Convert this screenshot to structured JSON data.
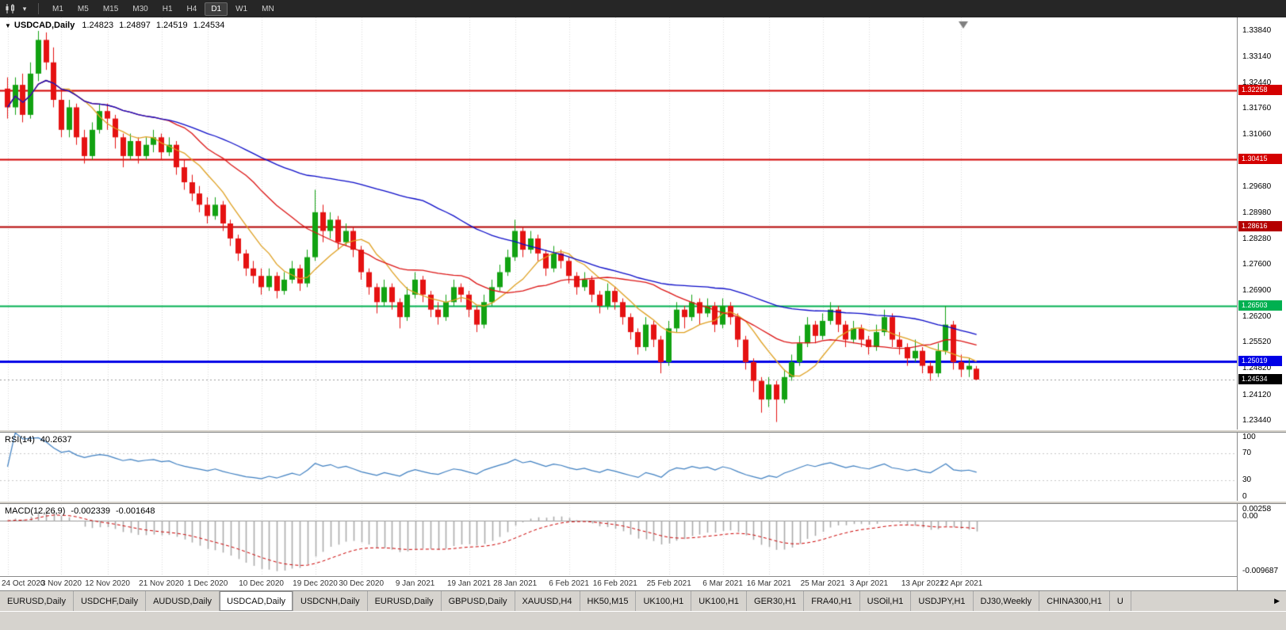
{
  "toolbar": {
    "timeframes": [
      "M1",
      "M5",
      "M15",
      "M30",
      "H1",
      "H4",
      "D1",
      "W1",
      "MN"
    ],
    "active_timeframe": "D1",
    "chart_type_icon": "candlestick-chart-icon",
    "caret_icon": "▾"
  },
  "chart": {
    "title": "USDCAD,Daily",
    "collapse_icon": "▼",
    "ohlc": {
      "open": "1.24823",
      "high": "1.24897",
      "low": "1.24519",
      "close": "1.24534"
    }
  },
  "price_scale": {
    "labels": [
      "1.33840",
      "1.33140",
      "1.32440",
      "1.31760",
      "1.31060",
      "1.30360",
      "1.29680",
      "1.28980",
      "1.28280",
      "1.27600",
      "1.26900",
      "1.26200",
      "1.25520",
      "1.24820",
      "1.24120",
      "1.23440"
    ]
  },
  "hlines": [
    {
      "price": 1.32258,
      "label": "1.32258",
      "color": "#D40000",
      "width": 2
    },
    {
      "price": 1.30415,
      "label": "1.30415",
      "color": "#D40000",
      "width": 2
    },
    {
      "price": 1.28616,
      "label": "1.28616",
      "color": "#B40000",
      "width": 2
    },
    {
      "price": 1.26503,
      "label": "1.26503",
      "color": "#00B050",
      "width": 2
    },
    {
      "price": 1.25019,
      "label": "1.25019",
      "color": "#0000E6",
      "width": 3
    }
  ],
  "current_price": {
    "price": 1.24534,
    "label": "1.24534",
    "color": "#000000"
  },
  "indicators": {
    "rsi": {
      "name": "RSI(14)",
      "value": "40.2637",
      "period": 14,
      "levels": [
        "100",
        "70",
        "30",
        "0"
      ]
    },
    "macd": {
      "name": "MACD(12,26,9)",
      "values": [
        "-0.002339",
        "-0.001648"
      ],
      "fast": 12,
      "slow": 26,
      "signal": 9,
      "scale_top": "0.00258",
      "scale_zero": "0.00",
      "scale_bottom": "-0.009687"
    }
  },
  "time_axis": {
    "labels": [
      {
        "text": "24 Oct 2020",
        "index": 0
      },
      {
        "text": "3 Nov 2020",
        "index": 7
      },
      {
        "text": "12 Nov 2020",
        "index": 13
      },
      {
        "text": "21 Nov 2020",
        "index": 20
      },
      {
        "text": "1 Dec 2020",
        "index": 26
      },
      {
        "text": "10 Dec 2020",
        "index": 33
      },
      {
        "text": "19 Dec 2020",
        "index": 40
      },
      {
        "text": "30 Dec 2020",
        "index": 46
      },
      {
        "text": "9 Jan 2021",
        "index": 53
      },
      {
        "text": "19 Jan 2021",
        "index": 60
      },
      {
        "text": "28 Jan 2021",
        "index": 66
      },
      {
        "text": "6 Feb 2021",
        "index": 73
      },
      {
        "text": "16 Feb 2021",
        "index": 79
      },
      {
        "text": "25 Feb 2021",
        "index": 86
      },
      {
        "text": "6 Mar 2021",
        "index": 93
      },
      {
        "text": "16 Mar 2021",
        "index": 99
      },
      {
        "text": "25 Mar 2021",
        "index": 106
      },
      {
        "text": "3 Apr 2021",
        "index": 112
      },
      {
        "text": "13 Apr 2021",
        "index": 119
      },
      {
        "text": "22 Apr 2021",
        "index": 124
      }
    ]
  },
  "tabs": {
    "items": [
      "EURUSD,Daily",
      "USDCHF,Daily",
      "AUDUSD,Daily",
      "USDCAD,Daily",
      "USDCNH,Daily",
      "EURUSD,Daily",
      "GBPUSD,Daily",
      "XAUUSD,H4",
      "HK50,M15",
      "UK100,H1",
      "UK100,H1",
      "GER30,H1",
      "FRA40,H1",
      "USOil,H1",
      "USDJPY,H1",
      "DJ30,Weekly",
      "CHINA300,H1",
      "U"
    ],
    "active_index": 3,
    "scroll_right_icon": "▶"
  },
  "colors": {
    "bull": "#12A212",
    "bear": "#E51212",
    "grid": "#DADADA",
    "rsi_line": "#3E7FC1",
    "macd_hist": "#ABABAB",
    "macd_signal": "#CC0000"
  },
  "chart_data": {
    "type": "candlestick",
    "symbol": "USDCAD",
    "timeframe": "Daily",
    "title": "USDCAD,Daily",
    "ylim": [
      1.232,
      1.342
    ],
    "moving_averages": [
      {
        "name": "ma-fast",
        "period": 8,
        "color": "#DFA020"
      },
      {
        "name": "ma-mid",
        "period": 21,
        "color": "#DC1414"
      },
      {
        "name": "ma-slow",
        "period": 55,
        "color": "#0A0AC8"
      }
    ],
    "candles": [
      [
        1.323,
        1.326,
        1.315,
        1.318
      ],
      [
        1.318,
        1.326,
        1.316,
        1.324
      ],
      [
        1.324,
        1.327,
        1.314,
        1.316
      ],
      [
        1.316,
        1.33,
        1.315,
        1.327
      ],
      [
        1.327,
        1.3384,
        1.325,
        1.336
      ],
      [
        1.336,
        1.338,
        1.328,
        1.33
      ],
      [
        1.33,
        1.334,
        1.318,
        1.32
      ],
      [
        1.32,
        1.323,
        1.31,
        1.312
      ],
      [
        1.312,
        1.32,
        1.31,
        1.318
      ],
      [
        1.318,
        1.319,
        1.308,
        1.31
      ],
      [
        1.31,
        1.312,
        1.303,
        1.305
      ],
      [
        1.305,
        1.314,
        1.304,
        1.312
      ],
      [
        1.312,
        1.319,
        1.311,
        1.317
      ],
      [
        1.317,
        1.319,
        1.312,
        1.315
      ],
      [
        1.315,
        1.316,
        1.307,
        1.31
      ],
      [
        1.31,
        1.311,
        1.302,
        1.305
      ],
      [
        1.305,
        1.311,
        1.304,
        1.309
      ],
      [
        1.309,
        1.31,
        1.303,
        1.305
      ],
      [
        1.305,
        1.31,
        1.304,
        1.308
      ],
      [
        1.308,
        1.312,
        1.306,
        1.31
      ],
      [
        1.31,
        1.311,
        1.304,
        1.306
      ],
      [
        1.306,
        1.31,
        1.305,
        1.308
      ],
      [
        1.308,
        1.309,
        1.3,
        1.302
      ],
      [
        1.302,
        1.304,
        1.296,
        1.298
      ],
      [
        1.298,
        1.3,
        1.293,
        1.295
      ],
      [
        1.295,
        1.297,
        1.29,
        1.292
      ],
      [
        1.292,
        1.294,
        1.287,
        1.289
      ],
      [
        1.289,
        1.294,
        1.288,
        1.292
      ],
      [
        1.292,
        1.293,
        1.285,
        1.287
      ],
      [
        1.287,
        1.288,
        1.281,
        1.283
      ],
      [
        1.283,
        1.284,
        1.277,
        1.279
      ],
      [
        1.279,
        1.28,
        1.273,
        1.275
      ],
      [
        1.275,
        1.277,
        1.271,
        1.273
      ],
      [
        1.273,
        1.275,
        1.268,
        1.27
      ],
      [
        1.27,
        1.275,
        1.269,
        1.273
      ],
      [
        1.273,
        1.274,
        1.267,
        1.269
      ],
      [
        1.269,
        1.274,
        1.268,
        1.272
      ],
      [
        1.272,
        1.277,
        1.271,
        1.275
      ],
      [
        1.275,
        1.276,
        1.269,
        1.271
      ],
      [
        1.271,
        1.28,
        1.27,
        1.278
      ],
      [
        1.278,
        1.296,
        1.277,
        1.29
      ],
      [
        1.29,
        1.292,
        1.282,
        1.285
      ],
      [
        1.285,
        1.29,
        1.283,
        1.288
      ],
      [
        1.288,
        1.289,
        1.28,
        1.282
      ],
      [
        1.282,
        1.287,
        1.281,
        1.285
      ],
      [
        1.285,
        1.286,
        1.278,
        1.28
      ],
      [
        1.28,
        1.281,
        1.272,
        1.274
      ],
      [
        1.274,
        1.275,
        1.268,
        1.27
      ],
      [
        1.27,
        1.271,
        1.263,
        1.266
      ],
      [
        1.266,
        1.272,
        1.265,
        1.27
      ],
      [
        1.27,
        1.271,
        1.264,
        1.266
      ],
      [
        1.266,
        1.267,
        1.259,
        1.262
      ],
      [
        1.262,
        1.27,
        1.261,
        1.268
      ],
      [
        1.268,
        1.274,
        1.267,
        1.272
      ],
      [
        1.272,
        1.273,
        1.266,
        1.268
      ],
      [
        1.268,
        1.269,
        1.262,
        1.264
      ],
      [
        1.264,
        1.266,
        1.26,
        1.262
      ],
      [
        1.262,
        1.268,
        1.261,
        1.266
      ],
      [
        1.266,
        1.272,
        1.265,
        1.27
      ],
      [
        1.27,
        1.271,
        1.266,
        1.268
      ],
      [
        1.268,
        1.269,
        1.262,
        1.264
      ],
      [
        1.264,
        1.265,
        1.258,
        1.26
      ],
      [
        1.26,
        1.268,
        1.259,
        1.266
      ],
      [
        1.266,
        1.272,
        1.265,
        1.27
      ],
      [
        1.27,
        1.276,
        1.269,
        1.274
      ],
      [
        1.274,
        1.28,
        1.273,
        1.278
      ],
      [
        1.278,
        1.288,
        1.277,
        1.285
      ],
      [
        1.285,
        1.286,
        1.278,
        1.28
      ],
      [
        1.28,
        1.285,
        1.279,
        1.283
      ],
      [
        1.283,
        1.284,
        1.277,
        1.279
      ],
      [
        1.279,
        1.28,
        1.273,
        1.275
      ],
      [
        1.275,
        1.281,
        1.274,
        1.279
      ],
      [
        1.279,
        1.28,
        1.275,
        1.277
      ],
      [
        1.277,
        1.278,
        1.271,
        1.273
      ],
      [
        1.273,
        1.274,
        1.268,
        1.27
      ],
      [
        1.27,
        1.274,
        1.269,
        1.272
      ],
      [
        1.272,
        1.273,
        1.266,
        1.268
      ],
      [
        1.268,
        1.269,
        1.263,
        1.265
      ],
      [
        1.265,
        1.271,
        1.264,
        1.269
      ],
      [
        1.269,
        1.27,
        1.264,
        1.266
      ],
      [
        1.266,
        1.267,
        1.26,
        1.262
      ],
      [
        1.262,
        1.263,
        1.256,
        1.258
      ],
      [
        1.258,
        1.259,
        1.252,
        1.254
      ],
      [
        1.254,
        1.262,
        1.253,
        1.26
      ],
      [
        1.26,
        1.261,
        1.254,
        1.256
      ],
      [
        1.256,
        1.257,
        1.247,
        1.25
      ],
      [
        1.25,
        1.261,
        1.249,
        1.259
      ],
      [
        1.259,
        1.266,
        1.258,
        1.264
      ],
      [
        1.264,
        1.265,
        1.259,
        1.262
      ],
      [
        1.262,
        1.268,
        1.261,
        1.266
      ],
      [
        1.266,
        1.267,
        1.26,
        1.263
      ],
      [
        1.263,
        1.267,
        1.262,
        1.265
      ],
      [
        1.265,
        1.266,
        1.258,
        1.26
      ],
      [
        1.26,
        1.267,
        1.259,
        1.265
      ],
      [
        1.265,
        1.266,
        1.26,
        1.262
      ],
      [
        1.262,
        1.263,
        1.254,
        1.256
      ],
      [
        1.256,
        1.257,
        1.248,
        1.25
      ],
      [
        1.25,
        1.251,
        1.242,
        1.245
      ],
      [
        1.245,
        1.246,
        1.2365,
        1.24
      ],
      [
        1.24,
        1.246,
        1.238,
        1.244
      ],
      [
        1.244,
        1.245,
        1.234,
        1.24
      ],
      [
        1.24,
        1.248,
        1.239,
        1.246
      ],
      [
        1.246,
        1.252,
        1.245,
        1.25
      ],
      [
        1.25,
        1.257,
        1.249,
        1.255
      ],
      [
        1.255,
        1.262,
        1.254,
        1.26
      ],
      [
        1.26,
        1.261,
        1.255,
        1.257
      ],
      [
        1.257,
        1.263,
        1.256,
        1.261
      ],
      [
        1.261,
        1.266,
        1.26,
        1.264
      ],
      [
        1.264,
        1.265,
        1.258,
        1.26
      ],
      [
        1.26,
        1.261,
        1.254,
        1.256
      ],
      [
        1.256,
        1.261,
        1.255,
        1.259
      ],
      [
        1.259,
        1.26,
        1.254,
        1.256
      ],
      [
        1.256,
        1.257,
        1.252,
        1.254
      ],
      [
        1.254,
        1.26,
        1.253,
        1.258
      ],
      [
        1.258,
        1.264,
        1.257,
        1.262
      ],
      [
        1.262,
        1.263,
        1.254,
        1.256
      ],
      [
        1.256,
        1.258,
        1.252,
        1.254
      ],
      [
        1.254,
        1.255,
        1.249,
        1.251
      ],
      [
        1.251,
        1.256,
        1.25,
        1.253
      ],
      [
        1.253,
        1.254,
        1.247,
        1.249
      ],
      [
        1.249,
        1.25,
        1.245,
        1.247
      ],
      [
        1.247,
        1.255,
        1.246,
        1.253
      ],
      [
        1.253,
        1.265,
        1.252,
        1.26
      ],
      [
        1.26,
        1.261,
        1.248,
        1.25
      ],
      [
        1.25,
        1.252,
        1.246,
        1.248
      ],
      [
        1.248,
        1.251,
        1.246,
        1.249
      ],
      [
        1.24823,
        1.24897,
        1.24519,
        1.24534
      ]
    ]
  }
}
